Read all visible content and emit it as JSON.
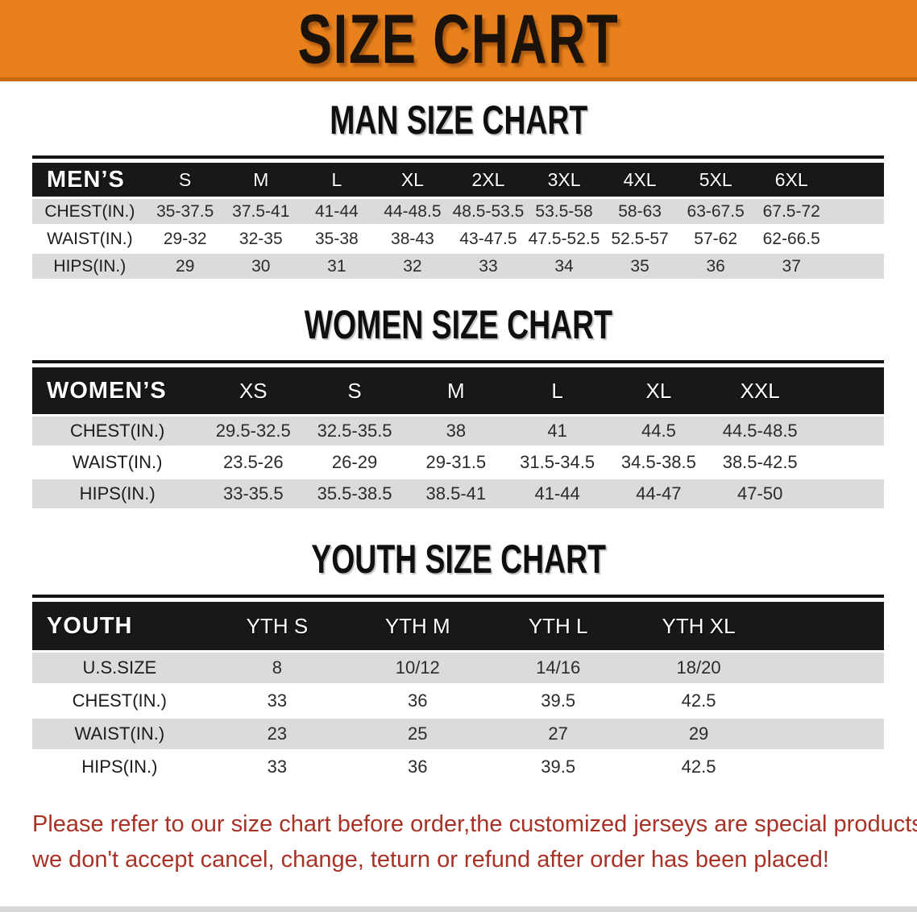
{
  "banner": {
    "title": "SIZE CHART"
  },
  "colors": {
    "banner_orange": "#E8811C",
    "header_black": "#181818",
    "row_gray": "#DBDBDB",
    "disclaimer_red": "#A93226"
  },
  "sections": [
    {
      "heading": "MAN SIZE CHART",
      "group_label": "MEN’S",
      "columns": [
        "S",
        "M",
        "L",
        "XL",
        "2XL",
        "3XL",
        "4XL",
        "5XL",
        "6XL"
      ],
      "rows": [
        {
          "label": "CHEST(IN.)",
          "values": [
            "35-37.5",
            "37.5-41",
            "41-44",
            "44-48.5",
            "48.5-53.5",
            "53.5-58",
            "58-63",
            "63-67.5",
            "67.5-72"
          ]
        },
        {
          "label": "WAIST(IN.)",
          "values": [
            "29-32",
            "32-35",
            "35-38",
            "38-43",
            "43-47.5",
            "47.5-52.5",
            "52.5-57",
            "57-62",
            "62-66.5"
          ]
        },
        {
          "label": "HIPS(IN.)",
          "values": [
            "29",
            "30",
            "31",
            "32",
            "33",
            "34",
            "35",
            "36",
            "37"
          ]
        }
      ]
    },
    {
      "heading": "WOMEN SIZE CHART",
      "group_label": "WOMEN’S",
      "columns": [
        "XS",
        "S",
        "M",
        "L",
        "XL",
        "XXL"
      ],
      "rows": [
        {
          "label": "CHEST(IN.)",
          "values": [
            "29.5-32.5",
            "32.5-35.5",
            "38",
            "41",
            "44.5",
            "44.5-48.5"
          ]
        },
        {
          "label": "WAIST(IN.)",
          "values": [
            "23.5-26",
            "26-29",
            "29-31.5",
            "31.5-34.5",
            "34.5-38.5",
            "38.5-42.5"
          ]
        },
        {
          "label": "HIPS(IN.)",
          "values": [
            "33-35.5",
            "35.5-38.5",
            "38.5-41",
            "41-44",
            "44-47",
            "47-50"
          ]
        }
      ]
    },
    {
      "heading": "YOUTH SIZE CHART",
      "group_label": "YOUTH",
      "columns": [
        "YTH S",
        "YTH M",
        "YTH L",
        "YTH XL"
      ],
      "rows": [
        {
          "label": "U.S.SIZE",
          "values": [
            "8",
            "10/12",
            "14/16",
            "18/20"
          ]
        },
        {
          "label": "CHEST(IN.)",
          "values": [
            "33",
            "36",
            "39.5",
            "42.5"
          ]
        },
        {
          "label": "WAIST(IN.)",
          "values": [
            "23",
            "25",
            "27",
            "29"
          ]
        },
        {
          "label": "HIPS(IN.)",
          "values": [
            "33",
            "36",
            "39.5",
            "42.5"
          ]
        }
      ]
    }
  ],
  "disclaimer": {
    "line1": "Please refer to our size chart before order,the customized jerseys are special products,",
    "line2": "we don't accept cancel, change, teturn or refund after order has been placed!"
  }
}
